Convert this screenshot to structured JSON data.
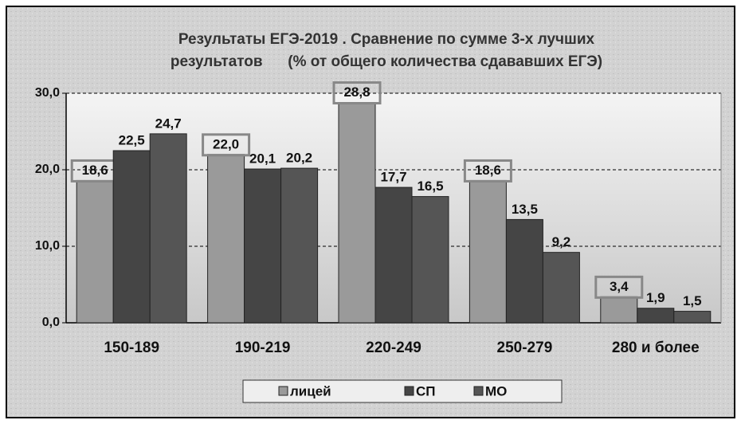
{
  "chart_data": {
    "type": "bar",
    "title": [
      "Результаты ЕГЭ-2019 . Сравнение по сумме 3-х лучших",
      "результатов      (% от общего количества сдававших ЕГЭ)"
    ],
    "categories": [
      "150-189",
      "190-219",
      "220-249",
      "250-279",
      "280 и более"
    ],
    "series": [
      {
        "name": "лицей",
        "color": "#9a9a9a",
        "values": [
          18.6,
          22.0,
          28.8,
          18.6,
          3.4
        ],
        "value_labels": [
          "18,6",
          "22,0",
          "28,8",
          "18,6",
          "3,4"
        ]
      },
      {
        "name": "СП",
        "color": "#454545",
        "values": [
          22.5,
          20.1,
          17.7,
          13.5,
          1.9
        ],
        "value_labels": [
          "22,5",
          "20,1",
          "17,7",
          "13,5",
          "1,9"
        ]
      },
      {
        "name": "МО",
        "color": "#555555",
        "values": [
          24.7,
          20.2,
          16.5,
          9.2,
          1.5
        ],
        "value_labels": [
          "24,7",
          "20,2",
          "16,5",
          "9,2",
          "1,5"
        ]
      }
    ],
    "ylim": [
      0,
      30
    ],
    "yticks": [
      {
        "value": 0,
        "label": "0,0"
      },
      {
        "value": 10,
        "label": "10,0"
      },
      {
        "value": 20,
        "label": "20,0"
      },
      {
        "value": 30,
        "label": "30,0"
      }
    ],
    "grid": true,
    "legend": "bottom"
  }
}
